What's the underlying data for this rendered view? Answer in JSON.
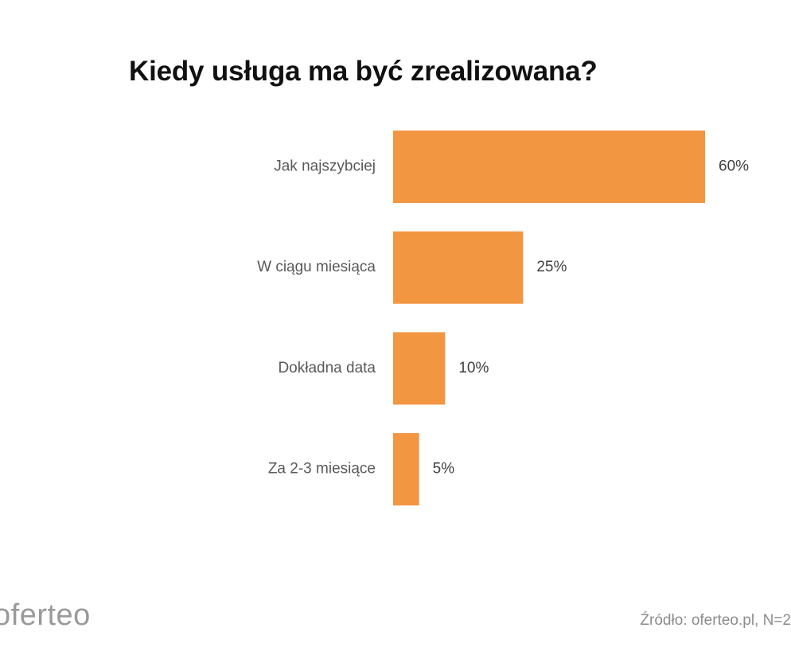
{
  "chart_data": {
    "type": "bar",
    "orientation": "horizontal",
    "title": "Kiedy usługa ma być zrealizowana?",
    "categories": [
      "Jak najszybciej",
      "W ciągu miesiąca",
      "Dokładna data",
      "Za 2-3 miesiące"
    ],
    "values": [
      60,
      25,
      10,
      5
    ],
    "value_labels": [
      "60%",
      "25%",
      "10%",
      "5%"
    ],
    "unit": "%",
    "xlim": [
      0,
      60
    ],
    "grid": false,
    "legend": "none",
    "bar_color": "#F39642"
  },
  "footer": {
    "logo_text": "oferteo",
    "source_text": "Źródło: oferteo.pl, N=2"
  }
}
